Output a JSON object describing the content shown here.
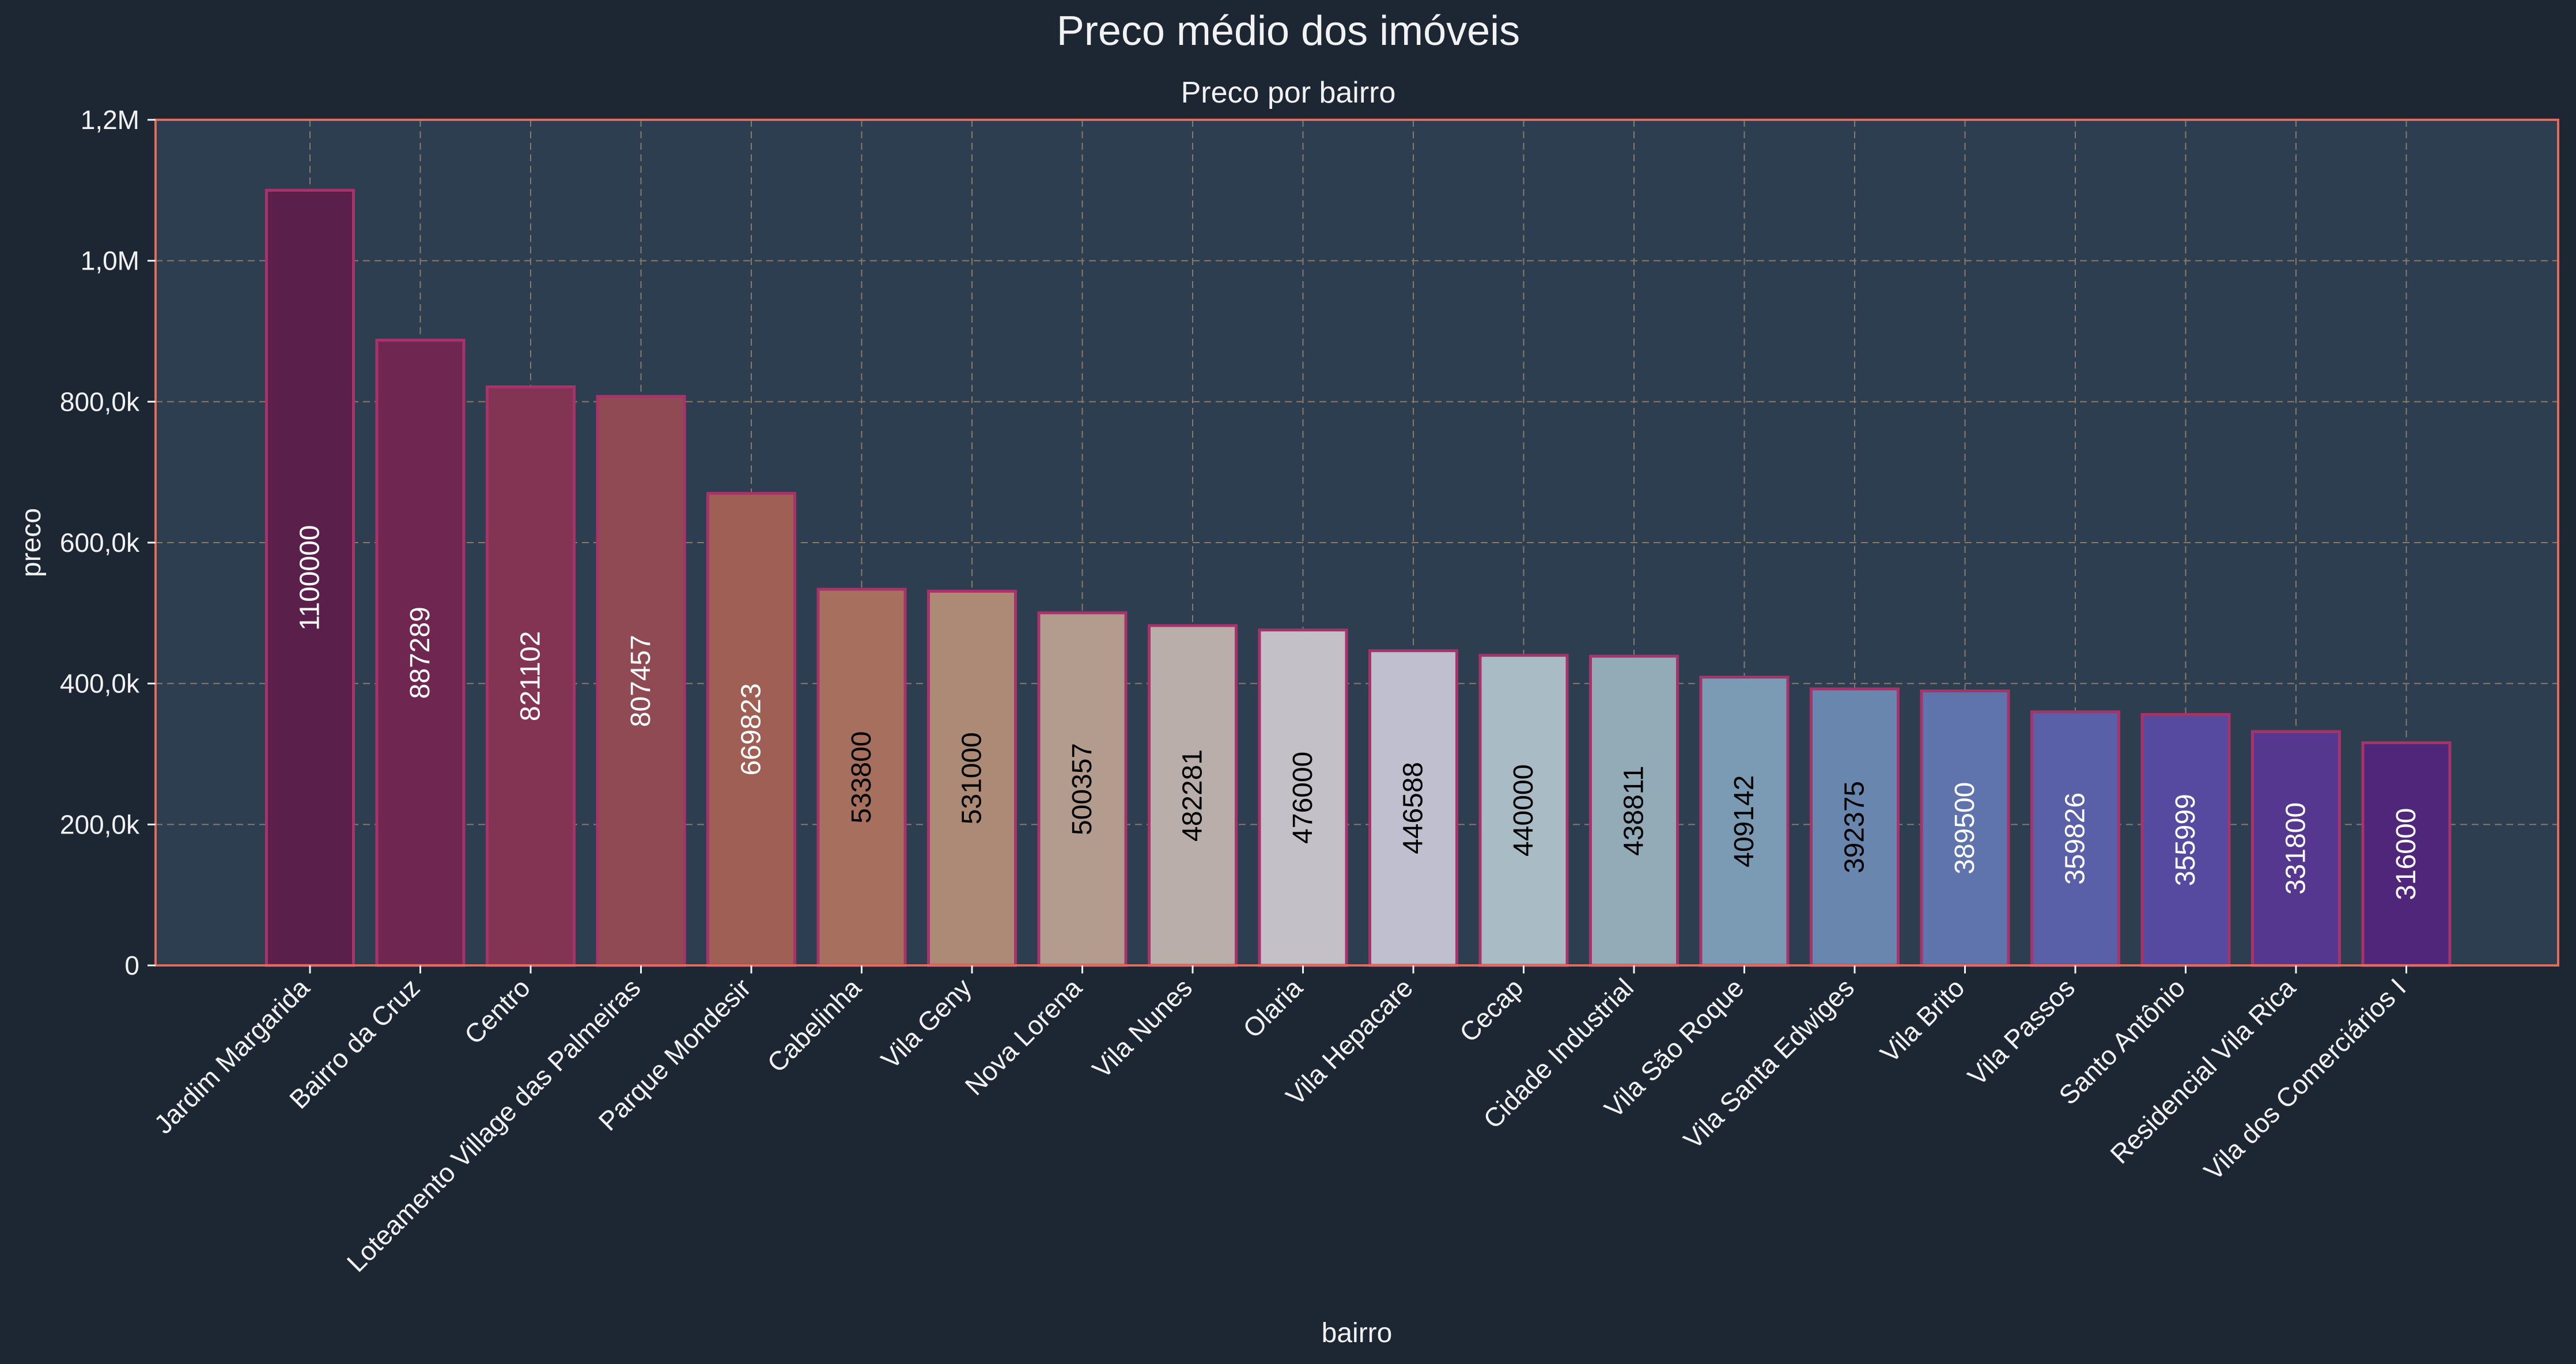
{
  "chart_data": {
    "type": "bar",
    "title": "Preco médio dos imóveis",
    "subtitle": "Preco por bairro",
    "xlabel": "bairro",
    "ylabel": "preco",
    "ylim": [
      0,
      1200000
    ],
    "yticks": [
      {
        "value": 0,
        "label": "0"
      },
      {
        "value": 200000,
        "label": "200,0k"
      },
      {
        "value": 400000,
        "label": "400,0k"
      },
      {
        "value": 600000,
        "label": "600,0k"
      },
      {
        "value": 800000,
        "label": "800,0k"
      },
      {
        "value": 1000000,
        "label": "1,0M"
      },
      {
        "value": 1200000,
        "label": "1,2M"
      }
    ],
    "grid": true,
    "categories": [
      "Jardim Margarida",
      "Bairro da Cruz",
      "Centro",
      "Loteamento Village das Palmeiras",
      "Parque Mondesir",
      "Cabelinha",
      "Vila Geny",
      "Nova Lorena",
      "Vila Nunes",
      "Olaria",
      "Vila Hepacare",
      "Cecap",
      "Cidade Industrial",
      "Vila São Roque",
      "Vila Santa Edwiges",
      "Vila Brito",
      "Vila Passos",
      "Santo Antônio",
      "Residencial Vila Rica",
      "Vila dos Comerciários I"
    ],
    "values": [
      1100000,
      887289,
      821102,
      807457,
      669823,
      533800,
      531000,
      500357,
      482281,
      476000,
      446588,
      440000,
      438811,
      409142,
      392375,
      389500,
      359826,
      355999,
      331800,
      316000
    ],
    "value_labels": [
      "1100000",
      "887289",
      "821102",
      "807457",
      "669823",
      "533800",
      "531000",
      "500357",
      "482281",
      "476000",
      "446588",
      "440000",
      "438811",
      "409142",
      "392375",
      "389500",
      "359826",
      "355999",
      "331800",
      "316000"
    ],
    "bar_colors": [
      "#5a1f4a",
      "#6f2650",
      "#823452",
      "#8f4a53",
      "#9f5f55",
      "#a7705e",
      "#ad8a76",
      "#b39c8d",
      "#baaeaa",
      "#c3c1c7",
      "#bfbfcf",
      "#a9bcc5",
      "#93aab7",
      "#7b9ab3",
      "#6986ae",
      "#5f74ac",
      "#5a60a8",
      "#5549a0",
      "#56378f",
      "#4f267a"
    ],
    "label_colors": [
      "#ffffff",
      "#ffffff",
      "#ffffff",
      "#ffffff",
      "#ffffff",
      "#000000",
      "#000000",
      "#000000",
      "#000000",
      "#000000",
      "#000000",
      "#000000",
      "#000000",
      "#000000",
      "#000000",
      "#ffffff",
      "#ffffff",
      "#ffffff",
      "#ffffff",
      "#ffffff"
    ],
    "colors": {
      "background": "#1d2733",
      "plot_background": "#2d3e50",
      "frame": "#e06c5c",
      "grid": "#8a7a6a",
      "bar_edge": "#a8336a",
      "text": "#f2f2f2"
    }
  }
}
